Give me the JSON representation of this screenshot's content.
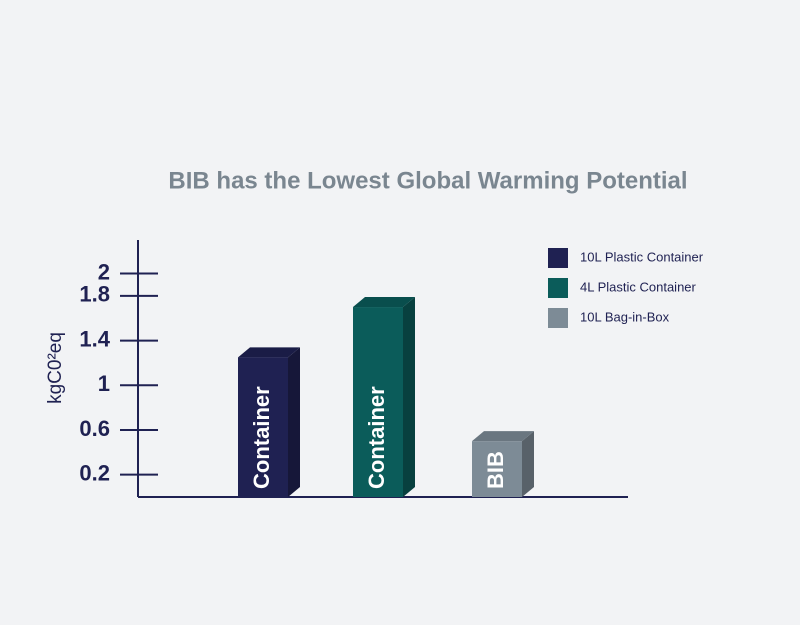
{
  "chart_data": {
    "type": "bar3d",
    "title": "BIB has the Lowest Global Warming Potential",
    "y_label": "kgC0²eq",
    "categories": [
      "Container",
      "Container",
      "BIB"
    ],
    "series": [
      {
        "name": "10L Plastic Container",
        "color": "#1f2152",
        "values": [
          1.25,
          null,
          null
        ]
      },
      {
        "name": "4L Plastic Container",
        "color": "#0b5c5a",
        "values": [
          null,
          1.7,
          null
        ]
      },
      {
        "name": "10L Bag-in-Box",
        "color": "#7d8b96",
        "values": [
          null,
          null,
          0.5
        ]
      }
    ],
    "ylim": [
      0,
      2.3
    ],
    "yticks": [
      0.2,
      0.6,
      1,
      1.4,
      1.8,
      2
    ]
  }
}
